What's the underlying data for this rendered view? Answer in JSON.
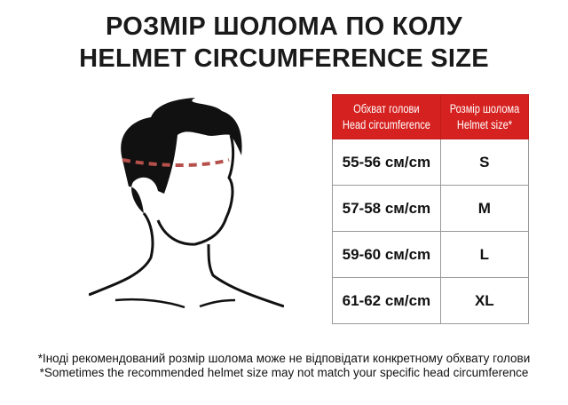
{
  "title": {
    "line1": "РОЗМІР ШОЛОМА ПО КОЛУ",
    "line2": "HELMET CIRCUMFERENCE SIZE"
  },
  "table": {
    "headers": [
      {
        "ua": "Обхват голови",
        "en": "Head circumference"
      },
      {
        "ua": "Розмір шолома",
        "en": "Helmet size*"
      }
    ],
    "rows": [
      {
        "circumference": "55-56 см/cm",
        "size": "S"
      },
      {
        "circumference": "57-58 см/cm",
        "size": "M"
      },
      {
        "circumference": "59-60 см/cm",
        "size": "L"
      },
      {
        "circumference": "61-62 см/cm",
        "size": "XL"
      }
    ],
    "header_color": "#d5211f"
  },
  "notes": {
    "ua": "*Іноді рекомендований розмір шолома може не відповідати конкретному обхвату голови",
    "en": "*Sometimes the recommended helmet size may not match your specific head circumference"
  },
  "illustration": {
    "icon": "head-measurement-icon",
    "measure_line_color": "#b5504a"
  }
}
